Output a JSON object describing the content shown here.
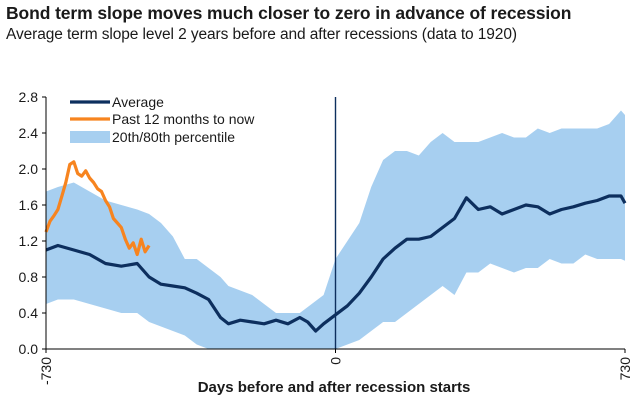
{
  "header": {
    "title": "Bond term slope moves much closer to zero in advance of recession",
    "subtitle": "Average term slope level 2 years before and after recessions (data to 1920)"
  },
  "colors": {
    "average": "#0d2f5e",
    "past12": "#f7841f",
    "band": "#a7cff0",
    "axis": "#000000",
    "vline": "#0d2f5e"
  },
  "chart_data": {
    "type": "area",
    "xlabel": "Days before and after recession starts",
    "ylabel": "",
    "xlim": [
      -730,
      730
    ],
    "ylim": [
      0.0,
      2.8
    ],
    "x_ticks": [
      -730,
      0,
      730
    ],
    "x_tick_labels": [
      "-730",
      "0",
      "730"
    ],
    "y_ticks": [
      0.0,
      0.4,
      0.8,
      1.2,
      1.6,
      2.0,
      2.4,
      2.8
    ],
    "y_tick_labels": [
      "0.0",
      "0.4",
      "0.8",
      "1.2",
      "1.6",
      "2.0",
      "2.4",
      "2.8"
    ],
    "grid": false,
    "legend_position": "top-left",
    "reference_line_x": 0,
    "series": [
      {
        "name": "Average",
        "type": "line",
        "x": [
          -730,
          -700,
          -660,
          -620,
          -580,
          -540,
          -500,
          -470,
          -440,
          -410,
          -380,
          -350,
          -320,
          -290,
          -270,
          -240,
          -210,
          -180,
          -150,
          -120,
          -90,
          -70,
          -50,
          -30,
          0,
          30,
          60,
          90,
          120,
          150,
          180,
          210,
          240,
          270,
          300,
          330,
          360,
          390,
          420,
          450,
          480,
          510,
          540,
          570,
          600,
          630,
          660,
          690,
          720,
          730
        ],
        "values": [
          1.1,
          1.15,
          1.1,
          1.05,
          0.95,
          0.92,
          0.95,
          0.8,
          0.72,
          0.7,
          0.68,
          0.62,
          0.55,
          0.35,
          0.28,
          0.32,
          0.3,
          0.28,
          0.32,
          0.28,
          0.35,
          0.3,
          0.2,
          0.28,
          0.38,
          0.48,
          0.62,
          0.8,
          1.0,
          1.12,
          1.22,
          1.22,
          1.25,
          1.35,
          1.45,
          1.68,
          1.55,
          1.58,
          1.5,
          1.55,
          1.6,
          1.58,
          1.5,
          1.55,
          1.58,
          1.62,
          1.65,
          1.7,
          1.7,
          1.62
        ]
      },
      {
        "name": "Past 12 months to now",
        "type": "line",
        "x": [
          -730,
          -720,
          -710,
          -700,
          -690,
          -680,
          -670,
          -660,
          -650,
          -640,
          -630,
          -620,
          -610,
          -600,
          -590,
          -580,
          -570,
          -560,
          -550,
          -540,
          -530,
          -520,
          -510,
          -500,
          -490,
          -480,
          -470
        ],
        "values": [
          1.3,
          1.42,
          1.48,
          1.55,
          1.7,
          1.85,
          2.05,
          2.08,
          1.95,
          1.92,
          1.98,
          1.9,
          1.85,
          1.78,
          1.75,
          1.65,
          1.58,
          1.45,
          1.4,
          1.35,
          1.22,
          1.12,
          1.18,
          1.05,
          1.22,
          1.08,
          1.15
        ]
      },
      {
        "name": "20th/80th percentile",
        "type": "band",
        "x": [
          -730,
          -700,
          -660,
          -620,
          -580,
          -540,
          -500,
          -470,
          -440,
          -410,
          -380,
          -350,
          -320,
          -290,
          -270,
          -240,
          -210,
          -180,
          -150,
          -120,
          -90,
          -60,
          -30,
          0,
          30,
          60,
          90,
          120,
          150,
          180,
          210,
          240,
          270,
          300,
          330,
          360,
          390,
          420,
          450,
          480,
          510,
          540,
          570,
          600,
          630,
          660,
          690,
          720,
          730
        ],
        "lower": [
          0.5,
          0.55,
          0.55,
          0.5,
          0.45,
          0.4,
          0.4,
          0.3,
          0.25,
          0.2,
          0.15,
          0.05,
          0.0,
          0.0,
          0.0,
          0.0,
          0.0,
          0.0,
          0.0,
          0.0,
          0.0,
          0.0,
          0.0,
          0.0,
          0.05,
          0.1,
          0.2,
          0.3,
          0.3,
          0.4,
          0.5,
          0.6,
          0.7,
          0.6,
          0.85,
          0.85,
          0.95,
          0.9,
          0.85,
          0.9,
          0.9,
          1.0,
          0.95,
          0.95,
          1.05,
          1.0,
          1.0,
          1.0,
          0.98
        ],
        "upper": [
          1.75,
          1.8,
          1.85,
          1.75,
          1.65,
          1.6,
          1.55,
          1.5,
          1.4,
          1.25,
          1.0,
          1.0,
          0.9,
          0.8,
          0.7,
          0.65,
          0.6,
          0.5,
          0.4,
          0.4,
          0.4,
          0.5,
          0.6,
          1.0,
          1.2,
          1.4,
          1.8,
          2.1,
          2.2,
          2.2,
          2.15,
          2.3,
          2.4,
          2.3,
          2.3,
          2.3,
          2.35,
          2.4,
          2.35,
          2.35,
          2.45,
          2.4,
          2.45,
          2.45,
          2.45,
          2.45,
          2.5,
          2.65,
          2.6
        ]
      }
    ]
  }
}
